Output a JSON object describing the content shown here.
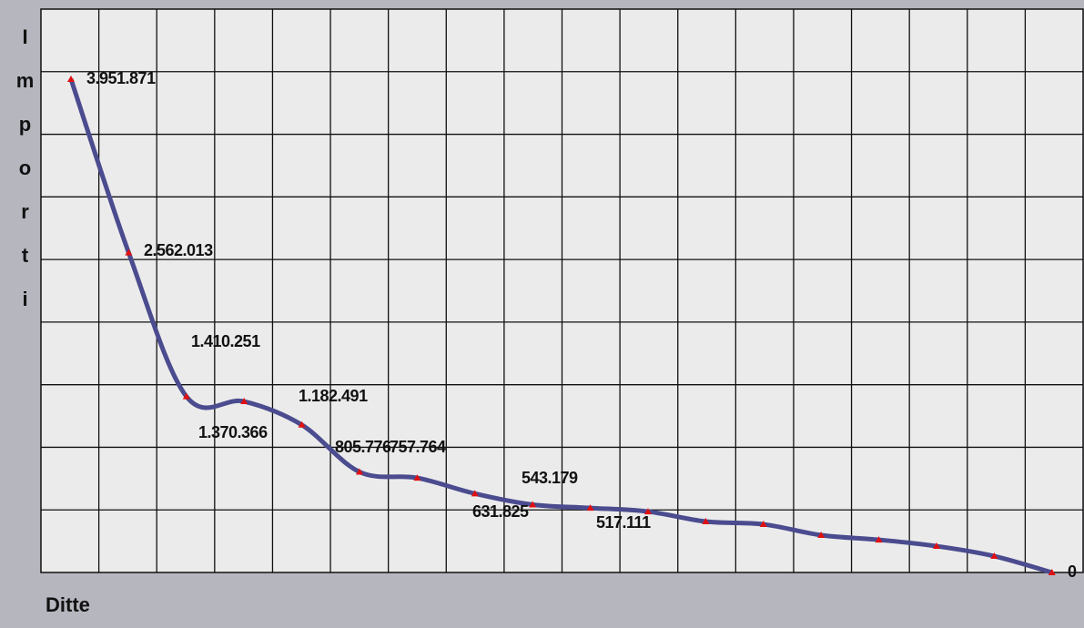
{
  "chart_data": {
    "type": "line",
    "y_label": "Importi",
    "x_label": "Ditte",
    "x": [
      1,
      2,
      3,
      4,
      5,
      6,
      7,
      8,
      9,
      10,
      11,
      12,
      13,
      14,
      15,
      16,
      17,
      18
    ],
    "xlim": [
      0.48,
      18.54
    ],
    "ylim": [
      0,
      4513000
    ],
    "grid": true,
    "series": [
      {
        "color": "#4b4b8f",
        "marker_color": "#e01010",
        "values": [
          3951871,
          2562013,
          1410251,
          1370366,
          1182491,
          805776,
          757764,
          631825,
          543179,
          517111,
          488000,
          408000,
          386000,
          299000,
          262000,
          211000,
          131000,
          0
        ],
        "value_labels": [
          "3.951.871",
          "2.562.013",
          "1.410.251",
          "1.370.366",
          "1.182.491",
          "805.776",
          "757.764",
          "631.825",
          "543.179",
          "517.111",
          null,
          null,
          null,
          null,
          null,
          null,
          null,
          "0"
        ]
      }
    ]
  }
}
